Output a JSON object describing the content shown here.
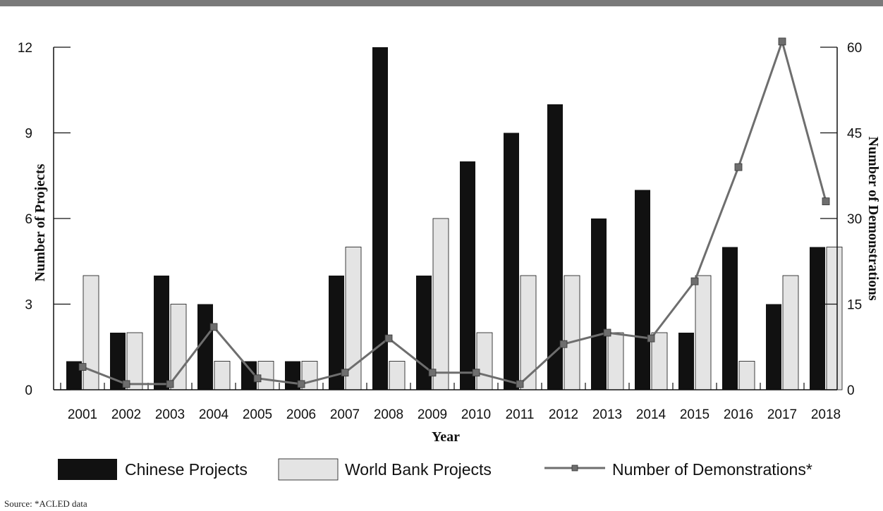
{
  "chart_data": {
    "type": "bar",
    "title": "",
    "xlabel": "Year",
    "ylabel_left": "Number of Projects",
    "ylabel_right": "Number of Demonstrations",
    "categories": [
      "2001",
      "2002",
      "2003",
      "2004",
      "2005",
      "2006",
      "2007",
      "2008",
      "2009",
      "2010",
      "2011",
      "2012",
      "2013",
      "2014",
      "2015",
      "2016",
      "2017",
      "2018"
    ],
    "ylim_left": [
      0,
      12
    ],
    "ylim_right": [
      0,
      60
    ],
    "yticks_left": [
      0,
      3,
      6,
      9,
      12
    ],
    "yticks_right": [
      0,
      15,
      30,
      45,
      60
    ],
    "series": [
      {
        "name": "Chinese Projects",
        "kind": "bar",
        "axis": "left",
        "color": "#111111",
        "values": [
          1,
          2,
          4,
          3,
          1,
          1,
          4,
          12,
          4,
          8,
          9,
          10,
          6,
          7,
          2,
          5,
          3,
          5
        ]
      },
      {
        "name": "World Bank Projects",
        "kind": "bar",
        "axis": "left",
        "color": "#e4e4e4",
        "values": [
          4,
          2,
          3,
          1,
          1,
          1,
          5,
          1,
          6,
          2,
          4,
          4,
          2,
          2,
          4,
          1,
          4,
          5
        ]
      },
      {
        "name": "Number of Demonstrations*",
        "kind": "line",
        "axis": "right",
        "color": "#6e6e6e",
        "values": [
          4,
          1,
          1,
          11,
          2,
          1,
          3,
          9,
          3,
          3,
          1,
          8,
          10,
          9,
          19,
          39,
          61,
          33
        ]
      }
    ],
    "legend": "bottom"
  },
  "source": "Source: *ACLED data"
}
